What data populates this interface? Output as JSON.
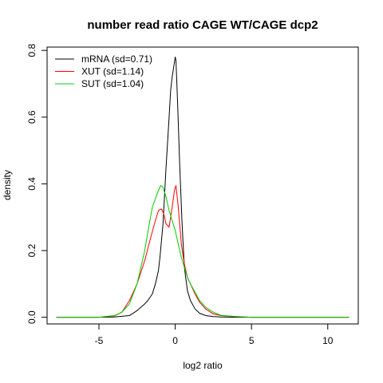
{
  "chart_data": {
    "type": "line",
    "title": "number read ratio CAGE WT/CAGE dcp2",
    "xlabel": "log2 ratio",
    "ylabel": "density",
    "xlim": [
      -8.4,
      12
    ],
    "ylim": [
      -0.02,
      0.81
    ],
    "xticks": [
      -5,
      0,
      5,
      10
    ],
    "xtick_labels": [
      "-5",
      "0",
      "5",
      "10"
    ],
    "yticks": [
      0.0,
      0.2,
      0.4,
      0.6,
      0.8
    ],
    "ytick_labels": [
      "0.0",
      "0.2",
      "0.4",
      "0.6",
      "0.8"
    ],
    "grid": false,
    "legend_position": "top-left",
    "series": [
      {
        "name": "mRNA (sd=0.71)",
        "color": "#000000",
        "x": [
          -7.8,
          -5.0,
          -4.0,
          -3.0,
          -2.5,
          -2.0,
          -1.8,
          -1.5,
          -1.3,
          -1.1,
          -1.0,
          -0.8,
          -0.6,
          -0.4,
          -0.3,
          -0.2,
          -0.1,
          0.0,
          0.05,
          0.15,
          0.3,
          0.45,
          0.6,
          0.8,
          1.0,
          1.3,
          1.6,
          2.0,
          2.5,
          3.0,
          4.0,
          6.0,
          11.4
        ],
        "y": [
          0.0,
          0.0,
          0.001,
          0.005,
          0.02,
          0.04,
          0.05,
          0.07,
          0.1,
          0.14,
          0.18,
          0.28,
          0.45,
          0.6,
          0.68,
          0.72,
          0.75,
          0.78,
          0.77,
          0.65,
          0.45,
          0.28,
          0.15,
          0.08,
          0.05,
          0.025,
          0.012,
          0.005,
          0.002,
          0.001,
          0.0,
          0.0,
          0.0
        ]
      },
      {
        "name": "XUT (sd=1.14)",
        "color": "#ff0000",
        "x": [
          -7.8,
          -5.0,
          -4.0,
          -3.5,
          -3.0,
          -2.5,
          -2.0,
          -1.6,
          -1.3,
          -1.1,
          -0.9,
          -0.75,
          -0.6,
          -0.4,
          -0.2,
          -0.05,
          0.05,
          0.2,
          0.4,
          0.6,
          0.8,
          1.0,
          1.3,
          1.6,
          2.0,
          2.5,
          3.0,
          4.0,
          5.0,
          7.0,
          11.4
        ],
        "y": [
          0.0,
          0.0,
          0.004,
          0.015,
          0.05,
          0.1,
          0.17,
          0.24,
          0.29,
          0.32,
          0.325,
          0.31,
          0.28,
          0.27,
          0.33,
          0.38,
          0.395,
          0.33,
          0.22,
          0.16,
          0.12,
          0.1,
          0.07,
          0.045,
          0.025,
          0.01,
          0.005,
          0.002,
          0.0,
          0.0,
          0.0
        ]
      },
      {
        "name": "SUT (sd=1.04)",
        "color": "#00cd00",
        "x": [
          -7.8,
          -5.0,
          -4.0,
          -3.5,
          -3.0,
          -2.5,
          -2.0,
          -1.7,
          -1.5,
          -1.3,
          -1.1,
          -0.95,
          -0.8,
          -0.6,
          -0.4,
          -0.2,
          0.0,
          0.2,
          0.4,
          0.6,
          0.8,
          1.0,
          1.3,
          1.6,
          2.0,
          2.5,
          3.0,
          4.0,
          5.0,
          7.0,
          11.4
        ],
        "y": [
          0.0,
          0.0,
          0.005,
          0.015,
          0.04,
          0.1,
          0.2,
          0.28,
          0.33,
          0.355,
          0.38,
          0.395,
          0.39,
          0.36,
          0.32,
          0.29,
          0.26,
          0.22,
          0.18,
          0.15,
          0.12,
          0.1,
          0.075,
          0.05,
          0.03,
          0.015,
          0.006,
          0.002,
          0.0,
          0.0,
          0.0
        ]
      }
    ]
  }
}
